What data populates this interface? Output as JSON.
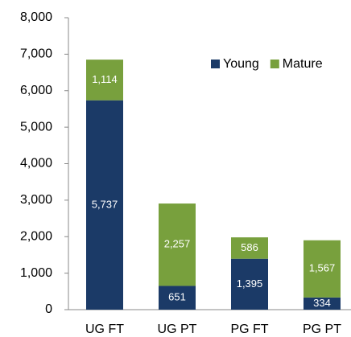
{
  "chart_data": {
    "type": "stacked_bar",
    "categories": [
      "UG FT",
      "UG PT",
      "PG FT",
      "PG PT"
    ],
    "series": [
      {
        "name": "Young",
        "color": "#1b3a67",
        "values": [
          5737,
          651,
          1395,
          334
        ],
        "value_labels": [
          "5,737",
          "651",
          "1,395",
          "334"
        ]
      },
      {
        "name": "Mature",
        "color": "#78a03d",
        "values": [
          1114,
          2257,
          586,
          1567
        ],
        "value_labels": [
          "1,114",
          "2,257",
          "586",
          "1,567"
        ]
      }
    ],
    "ylim": [
      0,
      8000
    ],
    "yticks": [
      0,
      {
        "value": 1000,
        "label": "1,000"
      },
      {
        "value": 2000,
        "label": "2,000"
      },
      {
        "value": 3000,
        "label": "3,000"
      },
      {
        "value": 4000,
        "label": "4,000"
      },
      {
        "value": 5000,
        "label": "5,000"
      },
      {
        "value": 6000,
        "label": "6,000"
      },
      {
        "value": 7000,
        "label": "7,000"
      },
      {
        "value": 8000,
        "label": "8,000"
      }
    ],
    "legend": "top-right"
  }
}
